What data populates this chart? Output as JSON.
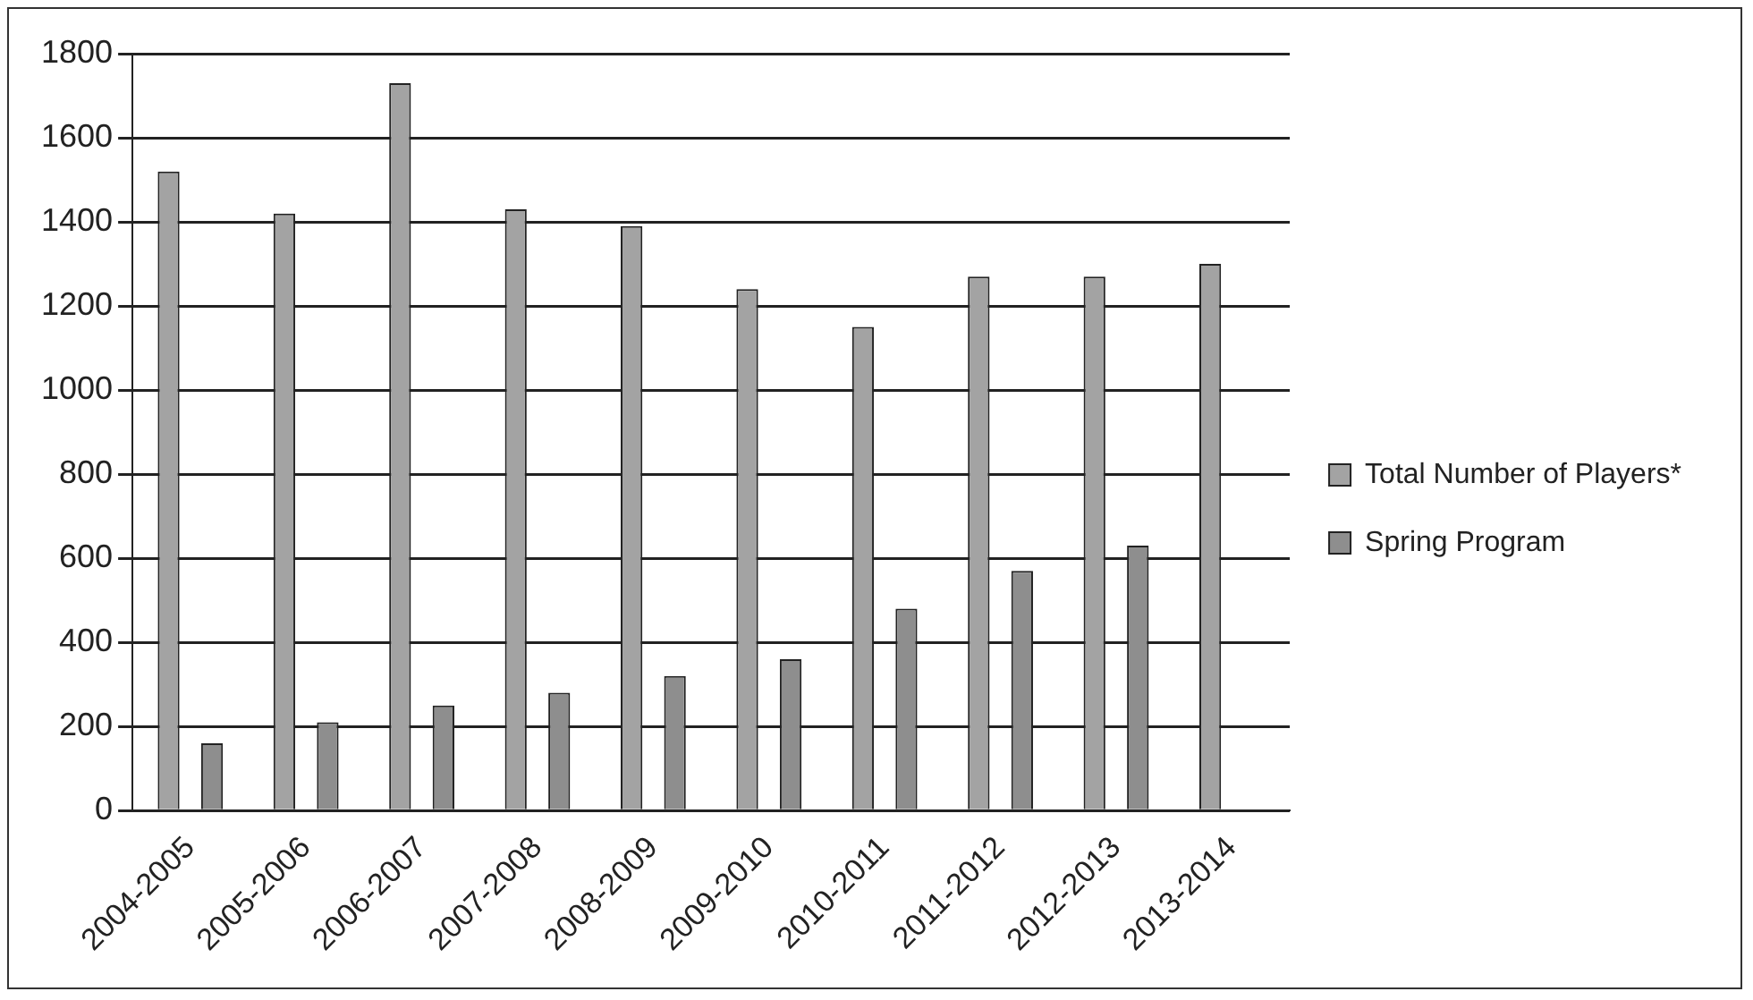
{
  "chart_data": {
    "type": "bar",
    "categories": [
      "2004-2005",
      "2005-2006",
      "2006-2007",
      "2007-2008",
      "2008-2009",
      "2009-2010",
      "2010-2011",
      "2011-2012",
      "2012-2013",
      "2013-2014"
    ],
    "series": [
      {
        "name": "Total Number of Players*",
        "color": "#a3a3a3",
        "values": [
          1520,
          1420,
          1730,
          1430,
          1390,
          1240,
          1150,
          1270,
          1270,
          1300
        ]
      },
      {
        "name": "Spring Program",
        "color": "#8e8e8e",
        "values": [
          160,
          210,
          250,
          280,
          320,
          360,
          480,
          570,
          630,
          null
        ]
      }
    ],
    "ylim": [
      0,
      1800
    ],
    "yticks": [
      0,
      200,
      400,
      600,
      800,
      1000,
      1200,
      1400,
      1600,
      1800
    ],
    "grid": "y",
    "legend": "right"
  }
}
